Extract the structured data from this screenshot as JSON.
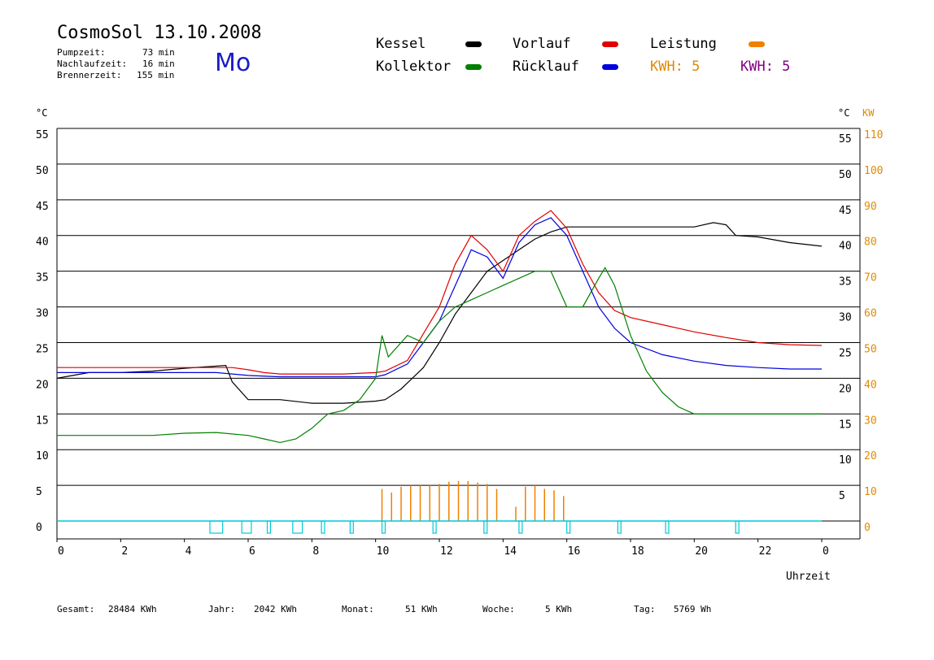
{
  "header": {
    "title": "CosmoSol 13.10.2008",
    "weekday": "Mo",
    "stats": [
      {
        "label": "Pumpzeit:",
        "value": "73 min"
      },
      {
        "label": "Nachlaufzeit:",
        "value": "16 min"
      },
      {
        "label": "Brennerzeit:",
        "value": "155 min"
      }
    ]
  },
  "legend": {
    "kessel": {
      "label": "Kessel",
      "color": "#000000"
    },
    "vorlauf": {
      "label": "Vorlauf",
      "color": "#e00000"
    },
    "leistung": {
      "label": "Leistung",
      "color": "#f08000"
    },
    "kollektor": {
      "label": "Kollektor",
      "color": "#008000"
    },
    "ruecklauf": {
      "label": "Rücklauf",
      "color": "#0000e0"
    },
    "kwh_orange": "KWH: 5",
    "kwh_purple": "KWH: 5",
    "orange_color": "#e08a00",
    "purple_color": "#800080"
  },
  "footer": [
    {
      "label": "Gesamt:",
      "value": "28484 KWh"
    },
    {
      "label": "Jahr:",
      "value": "2042 KWh"
    },
    {
      "label": "Monat:",
      "value": "51 KWh"
    },
    {
      "label": "Woche:",
      "value": "5 KWh"
    },
    {
      "label": "Tag:",
      "value": "5769 Wh"
    }
  ],
  "chart_data": {
    "type": "line",
    "xlabel": "Uhrzeit",
    "ylabel_left": "°C",
    "ylabel_right_temp": "°C",
    "ylabel_right_power": "KW",
    "xlim": [
      0,
      24
    ],
    "ylim": [
      -2.5,
      55
    ],
    "grid": true,
    "x_ticks": [
      "0",
      "2",
      "4",
      "6",
      "8",
      "10",
      "12",
      "14",
      "16",
      "18",
      "20",
      "22",
      "0"
    ],
    "y_ticks": [
      0,
      5,
      10,
      15,
      20,
      25,
      30,
      35,
      40,
      45,
      50,
      55
    ],
    "y_right_temp_ticks": [
      "5",
      "10",
      "15",
      "20",
      "25",
      "30",
      "35",
      "40",
      "45",
      "50",
      "55"
    ],
    "y_right_kw_ticks": [
      "0",
      "10",
      "20",
      "30",
      "40",
      "50",
      "60",
      "70",
      "80",
      "90",
      "100",
      "110"
    ],
    "series": [
      {
        "name": "Kessel",
        "color": "#000000",
        "x": [
          0,
          1,
          2,
          3,
          4,
          5.3,
          5.5,
          6,
          7,
          8,
          9,
          10,
          10.3,
          10.8,
          11.5,
          12,
          12.5,
          13,
          13.5,
          14,
          14.5,
          15,
          15.5,
          16,
          17,
          18,
          19,
          20,
          20.6,
          21,
          21.3,
          22,
          23,
          24
        ],
        "y": [
          20,
          20.8,
          20.8,
          21,
          21.4,
          21.8,
          19.5,
          17,
          17,
          16.5,
          16.5,
          16.8,
          17,
          18.5,
          21.5,
          25,
          29,
          32,
          35,
          36.5,
          38,
          39.5,
          40.5,
          41.2,
          41.2,
          41.2,
          41.2,
          41.2,
          41.8,
          41.5,
          40,
          39.8,
          39,
          38.5
        ]
      },
      {
        "name": "Vorlauf",
        "color": "#e00000",
        "x": [
          0,
          2,
          4,
          5,
          5.5,
          6,
          6.5,
          7,
          8,
          9,
          10,
          10.3,
          11,
          12,
          12.5,
          13,
          13.5,
          14,
          14.5,
          15,
          15.5,
          16,
          16.5,
          17,
          17.5,
          18,
          19,
          20,
          21,
          22,
          23,
          24
        ],
        "y": [
          21.5,
          21.5,
          21.5,
          21.5,
          21.5,
          21.2,
          20.8,
          20.6,
          20.6,
          20.6,
          20.8,
          21,
          22.5,
          30,
          36,
          40,
          38,
          35,
          40,
          42,
          43.5,
          41,
          36,
          32,
          29.5,
          28.5,
          27.5,
          26.5,
          25.7,
          25,
          24.7,
          24.6
        ]
      },
      {
        "name": "Rücklauf",
        "color": "#0000e0",
        "x": [
          0,
          2,
          4,
          5,
          5.5,
          6,
          7,
          8,
          9,
          10,
          10.3,
          11,
          11.5,
          12,
          12.5,
          13,
          13.5,
          14,
          14.5,
          15,
          15.5,
          16,
          16.5,
          17,
          17.5,
          18,
          19,
          20,
          21,
          22,
          23,
          24
        ],
        "y": [
          20.8,
          20.8,
          20.8,
          20.8,
          20.6,
          20.4,
          20.2,
          20.2,
          20.2,
          20.2,
          20.5,
          22,
          25,
          28,
          33,
          38,
          37,
          34,
          39,
          41.5,
          42.5,
          40,
          35,
          30,
          27,
          25,
          23.3,
          22.4,
          21.8,
          21.5,
          21.3,
          21.3
        ]
      },
      {
        "name": "Kollektor",
        "color": "#008000",
        "x": [
          0,
          1,
          2,
          3,
          4,
          5,
          6,
          6.5,
          7,
          7.5,
          8,
          8.5,
          9,
          9.5,
          10,
          10.2,
          10.4,
          11,
          11.5,
          12,
          12.5,
          13,
          13.5,
          14,
          14.5,
          15,
          15.5,
          16,
          16.5,
          17,
          17.2,
          17.5,
          18,
          18.5,
          19,
          19.5,
          20,
          21,
          22,
          23,
          24
        ],
        "y": [
          12,
          12,
          12,
          12,
          12.3,
          12.4,
          12,
          11.5,
          11,
          11.5,
          13,
          15,
          15.5,
          17,
          20,
          26,
          23,
          26,
          25,
          28,
          30,
          31,
          32,
          33,
          34,
          35,
          35,
          30,
          30,
          34,
          35.5,
          33,
          26,
          21,
          18,
          16,
          15,
          15,
          15,
          15,
          15
        ]
      },
      {
        "name": "Leistung",
        "color": "#f08000",
        "x": [
          10.2,
          10.5,
          10.8,
          11.1,
          11.4,
          11.7,
          12,
          12.3,
          12.6,
          12.9,
          13.2,
          13.5,
          13.8,
          14.4,
          14.7,
          15,
          15.3,
          15.6,
          15.9
        ],
        "y": [
          4.5,
          4,
          4.8,
          5,
          5,
          5,
          5.2,
          5.5,
          5.6,
          5.6,
          5.4,
          5.2,
          4.5,
          2,
          4.8,
          5,
          4.5,
          4.3,
          3.5
        ]
      }
    ],
    "burner_intervals": [
      [
        4.8,
        5.2
      ],
      [
        5.8,
        6.1
      ],
      [
        6.6,
        6.7
      ],
      [
        7.4,
        7.7
      ],
      [
        8.3,
        8.4
      ],
      [
        9.2,
        9.3
      ],
      [
        10.2,
        10.3
      ],
      [
        11.8,
        11.9
      ],
      [
        13.4,
        13.5
      ],
      [
        14.5,
        14.6
      ],
      [
        16.0,
        16.1
      ],
      [
        17.6,
        17.7
      ],
      [
        19.1,
        19.2
      ],
      [
        21.3,
        21.4
      ]
    ]
  }
}
